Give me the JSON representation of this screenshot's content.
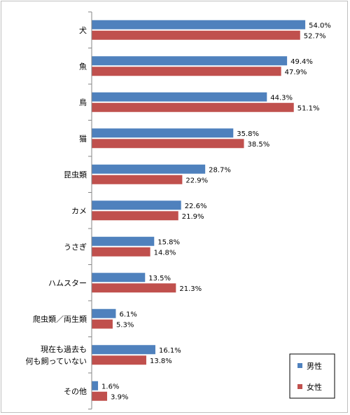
{
  "chart_data": {
    "type": "bar",
    "orientation": "horizontal",
    "categories": [
      [
        "犬"
      ],
      [
        "魚"
      ],
      [
        "鳥"
      ],
      [
        "猫"
      ],
      [
        "昆虫類"
      ],
      [
        "カメ"
      ],
      [
        "うさぎ"
      ],
      [
        "ハムスター"
      ],
      [
        "爬虫類／両生類"
      ],
      [
        "現在も過去も",
        "何も飼っていない"
      ],
      [
        "その他"
      ]
    ],
    "series": [
      {
        "name": "男性",
        "color": "#4f81bd",
        "values": [
          54.0,
          49.4,
          44.3,
          35.8,
          28.7,
          22.6,
          15.8,
          13.5,
          6.1,
          16.1,
          1.6
        ],
        "labels": [
          "54.0%",
          "49.4%",
          "44.3%",
          "35.8%",
          "28.7%",
          "22.6%",
          "15.8%",
          "13.5%",
          "6.1%",
          "16.1%",
          "1.6%"
        ]
      },
      {
        "name": "女性",
        "color": "#c0504d",
        "values": [
          52.7,
          47.9,
          51.1,
          38.5,
          22.9,
          21.9,
          14.8,
          21.3,
          5.3,
          13.8,
          3.9
        ],
        "labels": [
          "52.7%",
          "47.9%",
          "51.1%",
          "38.5%",
          "22.9%",
          "21.9%",
          "14.8%",
          "21.3%",
          "5.3%",
          "13.8%",
          "3.9%"
        ]
      }
    ],
    "xlim": [
      0,
      60
    ],
    "grid": false,
    "legend_position": "bottom-right",
    "unit": "%"
  }
}
